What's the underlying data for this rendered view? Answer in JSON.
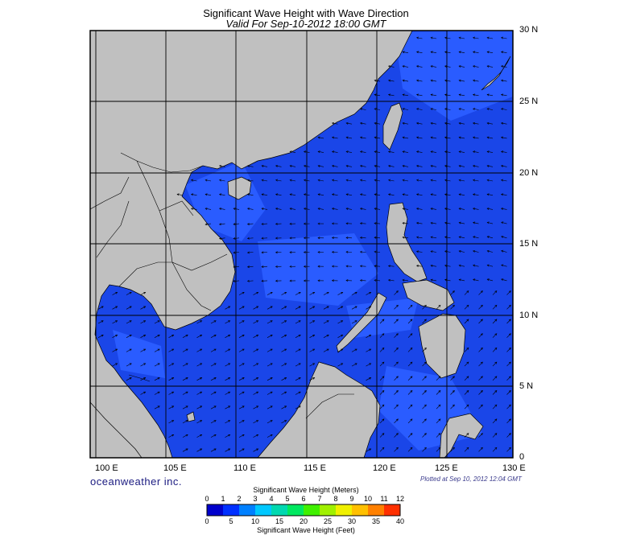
{
  "title": "Significant Wave Height with Wave Direction",
  "subtitle": "Valid For Sep-10-2012 18:00 GMT",
  "brand": "oceanweather inc.",
  "plotted": "Plotted at Sep 10, 2012 12:04 GMT",
  "axes": {
    "lon_labels": [
      "100 E",
      "105 E",
      "110 E",
      "115 E",
      "120 E",
      "125 E",
      "130 E"
    ],
    "lat_labels": [
      "0",
      "5 N",
      "10 N",
      "15 N",
      "20 N",
      "25 N",
      "30 N"
    ],
    "lon_range": [
      98,
      130
    ],
    "lat_range": [
      0,
      30
    ]
  },
  "colorbar": {
    "title_top": "Significant Wave Height (Meters)",
    "title_bottom": "Significant Wave Height (Feet)",
    "meters": [
      "0",
      "1",
      "2",
      "3",
      "4",
      "5",
      "6",
      "7",
      "8",
      "9",
      "10",
      "11",
      "12"
    ],
    "feet": [
      "0",
      "5",
      "10",
      "15",
      "20",
      "25",
      "30",
      "35",
      "40"
    ],
    "colors": [
      "#0000cc",
      "#0030ff",
      "#0080ff",
      "#00c8ff",
      "#00d8b0",
      "#00e860",
      "#40f000",
      "#a0f000",
      "#f0f000",
      "#ffc000",
      "#ff8000",
      "#ff3000"
    ]
  },
  "colors": {
    "land": "#c0c0c0",
    "sea_base": "#1a46e8",
    "sea_light": "#2a5cff",
    "sea_dark": "#0a26b4",
    "grid": "#000000"
  }
}
